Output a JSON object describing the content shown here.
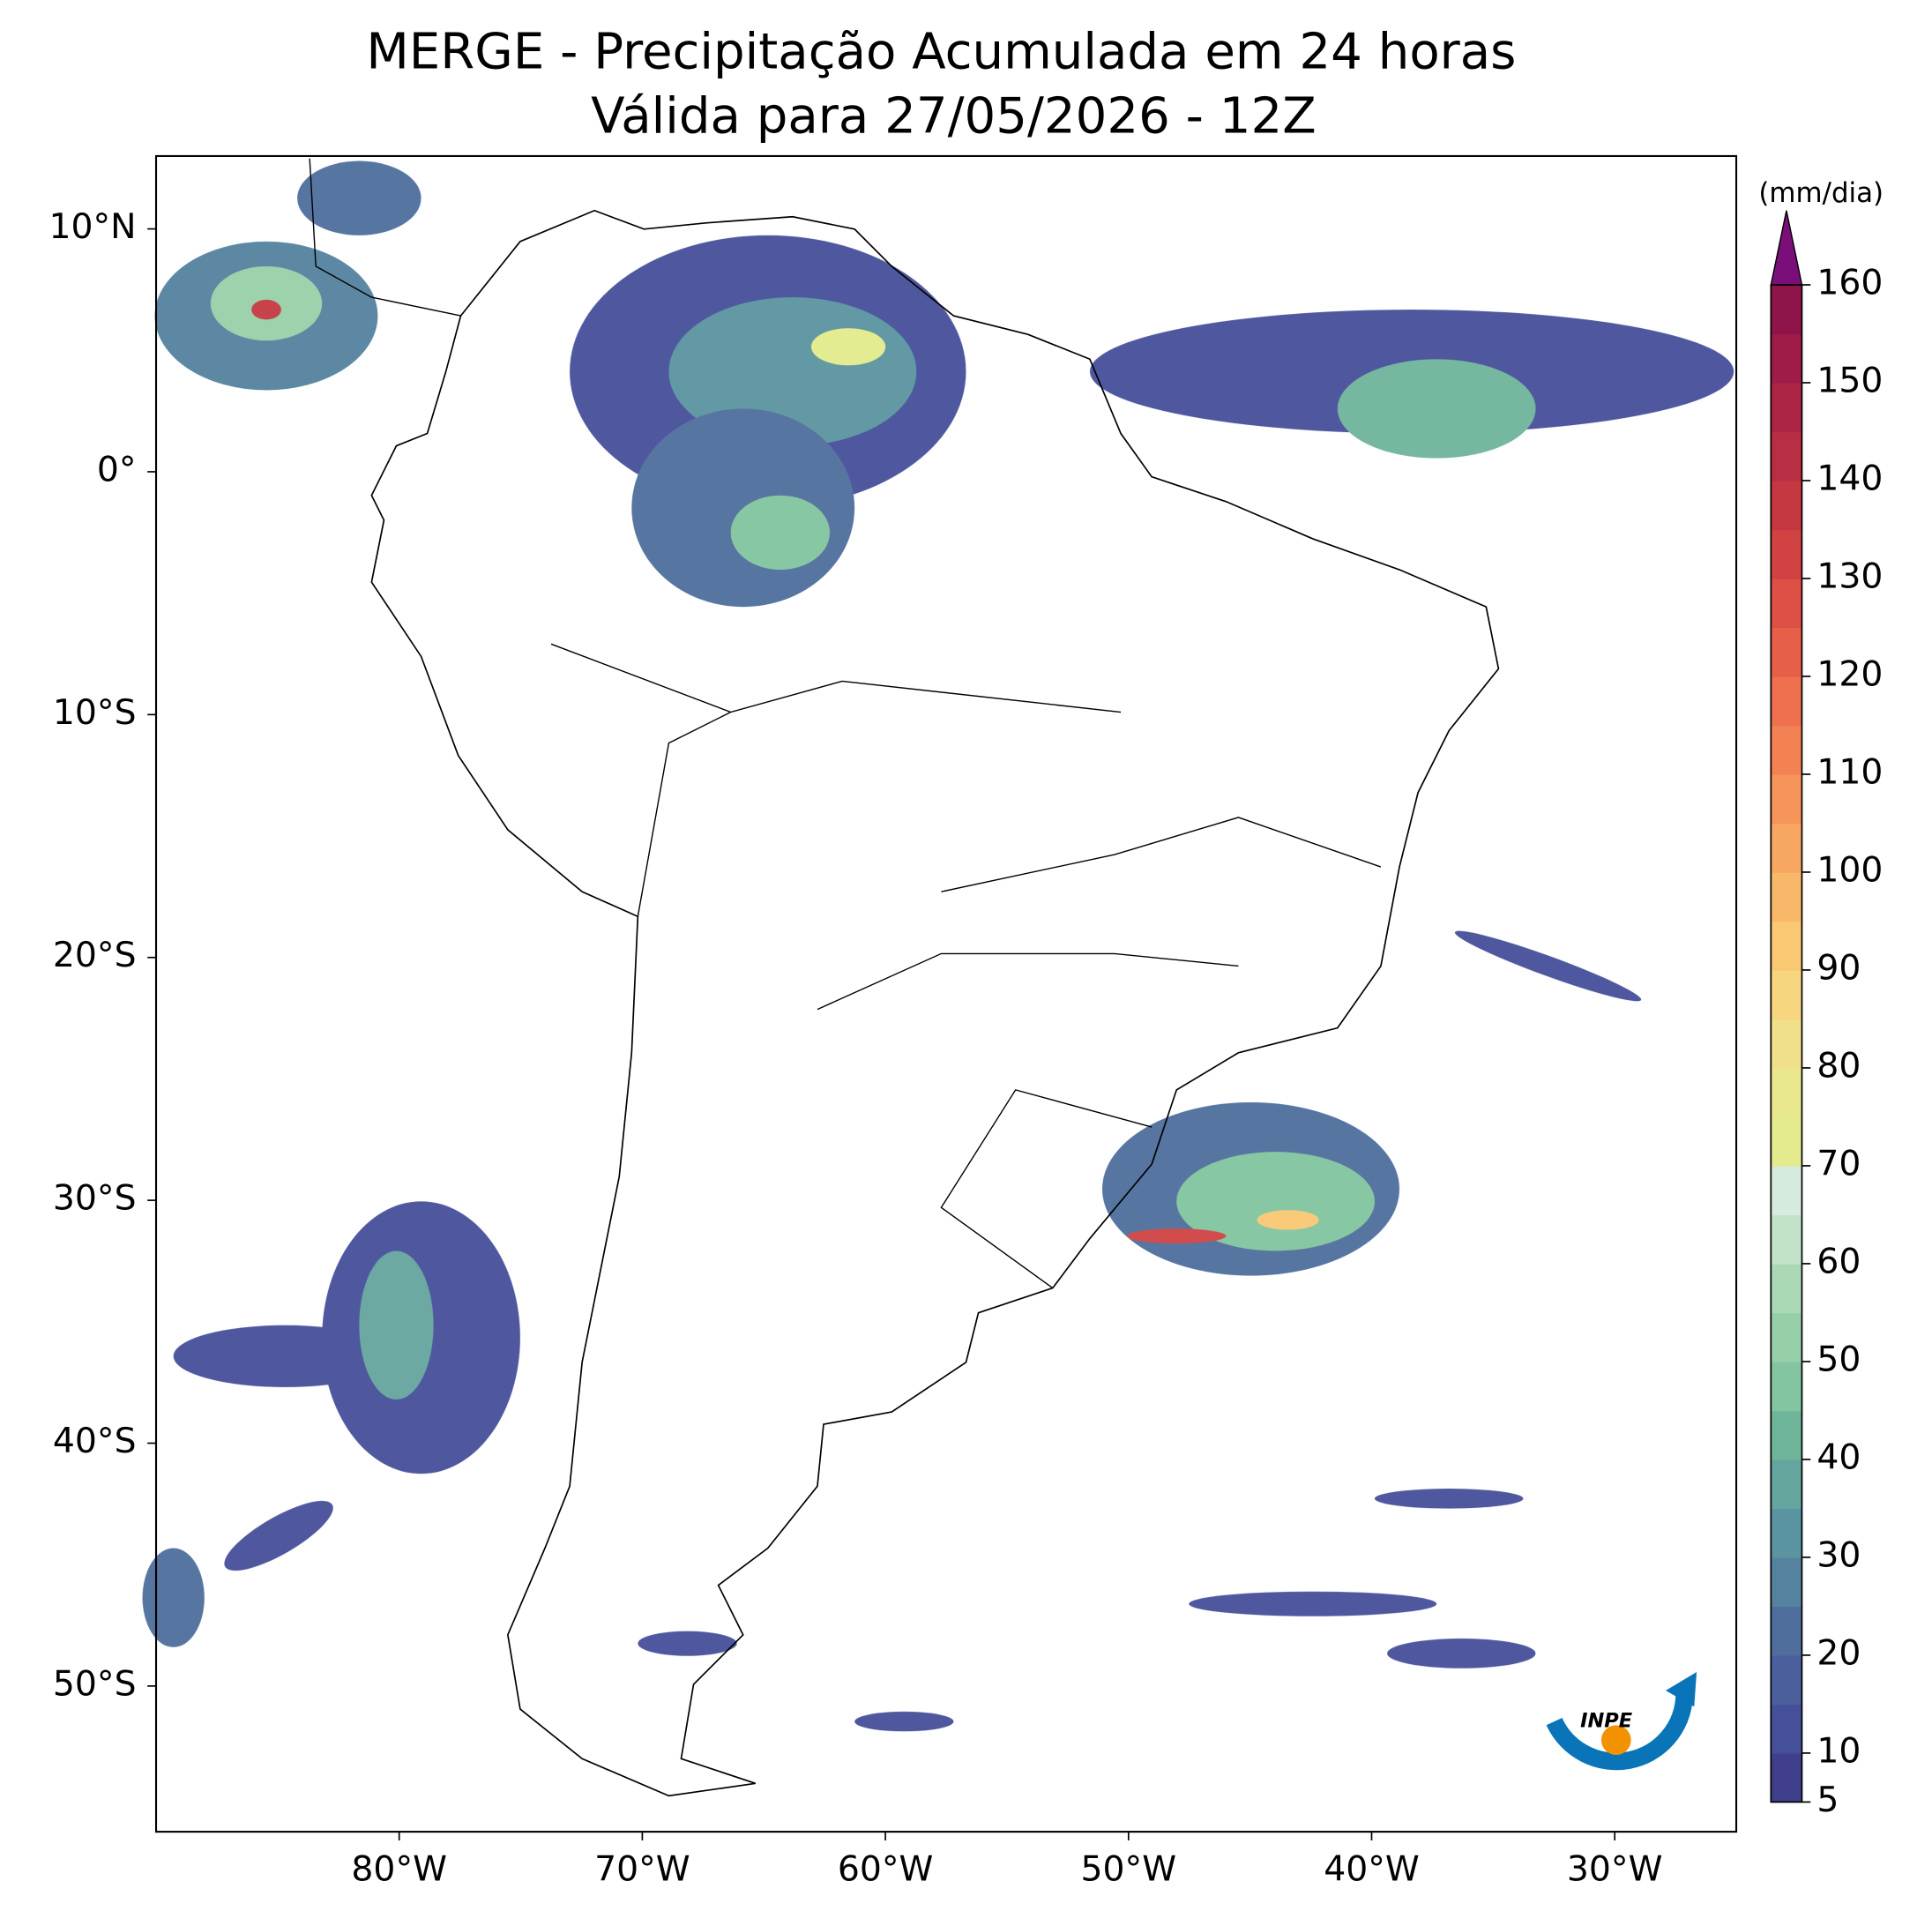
{
  "map": {
    "title": "MERGE - Precipitação Acumulada em 24 horas",
    "subtitle": "Válida para 27/05/2026 - 12Z",
    "xlim": [
      -90,
      -25
    ],
    "ylim": [
      -56,
      13
    ],
    "xticks": [
      {
        "value": -80,
        "label": "80°W"
      },
      {
        "value": -70,
        "label": "70°W"
      },
      {
        "value": -60,
        "label": "60°W"
      },
      {
        "value": -50,
        "label": "50°W"
      },
      {
        "value": -40,
        "label": "40°W"
      },
      {
        "value": -30,
        "label": "30°W"
      }
    ],
    "yticks": [
      {
        "value": 10,
        "label": "10°N"
      },
      {
        "value": 0,
        "label": "0°"
      },
      {
        "value": -10,
        "label": "10°S"
      },
      {
        "value": -20,
        "label": "20°S"
      },
      {
        "value": -30,
        "label": "30°S"
      },
      {
        "value": -40,
        "label": "40°S"
      },
      {
        "value": -50,
        "label": "50°S"
      }
    ],
    "colorbar": {
      "label": "(mm/dia)",
      "lim": [
        5,
        160
      ],
      "ticks": [
        5,
        10,
        20,
        30,
        40,
        50,
        60,
        70,
        80,
        90,
        100,
        110,
        120,
        130,
        140,
        150,
        160
      ],
      "colors": [
        "#3f3f8c",
        "#46509a",
        "#4a5f9c",
        "#4f6e9c",
        "#55829f",
        "#5a94a0",
        "#64a59e",
        "#6fb59a",
        "#82c5a0",
        "#97d0a8",
        "#acd9b5",
        "#c2e3c8",
        "#d5ebdd",
        "#e3eb8c",
        "#eae88e",
        "#f1e08a",
        "#f7d67f",
        "#f9c873",
        "#f8b86a",
        "#f7a761",
        "#f5955a",
        "#f28254",
        "#ee704e",
        "#e65f49",
        "#dc5045",
        "#d14343",
        "#c53842",
        "#b92e43",
        "#ac2545",
        "#9e1c47",
        "#8f1449"
      ],
      "extend_color": "#7a0f7a"
    },
    "logo": "INPE"
  }
}
